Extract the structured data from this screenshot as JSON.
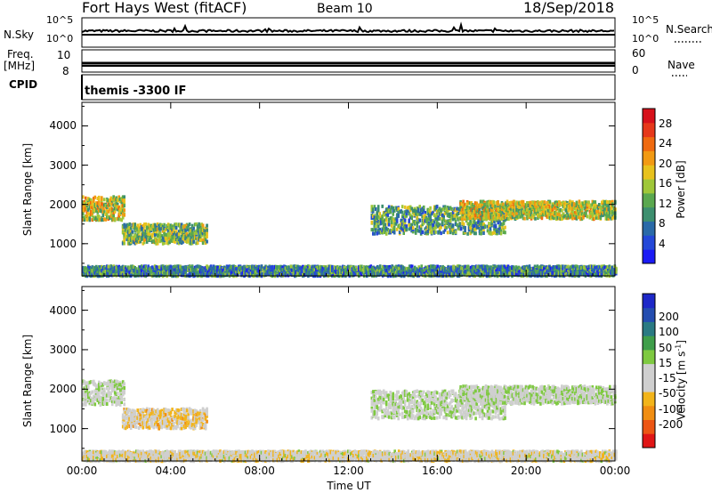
{
  "header": {
    "station": "Fort Hays West (fitACF)",
    "beam": "Beam 10",
    "date": "18/Sep/2018"
  },
  "top_strip": {
    "left_labels": [
      "N.Sky",
      "Freq.",
      "[MHz]",
      "CPID"
    ],
    "right_labels": [
      "N.Search",
      "Nave"
    ],
    "nsky_ticks": [
      "10^5",
      "10^0"
    ],
    "freq_ticks": [
      "10",
      "8"
    ],
    "nave_ticks": [
      "60",
      "0"
    ],
    "nsearch_ticks": [
      "10^5",
      "10^0"
    ],
    "cpid_text": "themis -3300 IF"
  },
  "colors": {
    "power": [
      "#1b1bf5",
      "#2448d8",
      "#2a6aa8",
      "#3d8f6f",
      "#5aa84f",
      "#9fc739",
      "#e8c21d",
      "#f29a13",
      "#ef6a10",
      "#e6381a",
      "#d7111b"
    ],
    "velocity": [
      "#e01616",
      "#ec5614",
      "#f08d12",
      "#f2b41a",
      "#cfcfcf",
      "#cfcfcf",
      "#7ec940",
      "#3f9e4a",
      "#2a7a83",
      "#244db0",
      "#1d28c8"
    ],
    "ground": "#bcbcbc"
  },
  "chart_data": [
    {
      "type": "heatmap",
      "name": "power",
      "xlabel": "",
      "ylabel": "Slant Range [km]",
      "xlim": [
        0,
        24
      ],
      "ylim": [
        180,
        4600
      ],
      "yticks": [
        1000,
        2000,
        3000,
        4000
      ],
      "colorbar": {
        "label": "Power [dB]",
        "ticks": [
          "4",
          "8",
          "12",
          "16",
          "20",
          "24",
          "28"
        ],
        "range": [
          0,
          30
        ]
      },
      "echo_regions": [
        {
          "t_start": 0.0,
          "t_end": 1.9,
          "r_center": 1900,
          "r_width": 600,
          "value": 16
        },
        {
          "t_start": 1.8,
          "t_end": 5.6,
          "r_center": 1250,
          "r_width": 500,
          "value": 13
        },
        {
          "t_start": 13.0,
          "t_end": 19.0,
          "r_center": 1600,
          "r_width": 700,
          "value": 11
        },
        {
          "t_start": 17.0,
          "t_end": 24.0,
          "r_center": 1850,
          "r_width": 450,
          "value": 16
        },
        {
          "t_start": 0.0,
          "t_end": 24.0,
          "r_center": 300,
          "r_width": 250,
          "value": 9
        }
      ]
    },
    {
      "type": "heatmap",
      "name": "velocity",
      "xlabel": "Time UT",
      "ylabel": "Slant Range [km]",
      "xlim": [
        0,
        24
      ],
      "ylim": [
        180,
        4600
      ],
      "yticks": [
        1000,
        2000,
        3000,
        4000
      ],
      "xticks": [
        "00:00",
        "04:00",
        "08:00",
        "12:00",
        "16:00",
        "20:00",
        "00:00"
      ],
      "colorbar": {
        "label": "Velocity [m s^-1]",
        "ticks": [
          "-200",
          "-100",
          "-50",
          "-15",
          "15",
          "50",
          "100",
          "200"
        ],
        "range": [
          -250,
          250
        ]
      },
      "echo_regions": [
        {
          "t_start": 0.0,
          "t_end": 1.9,
          "r_center": 1900,
          "r_width": 600,
          "value": 0
        },
        {
          "t_start": 1.8,
          "t_end": 5.6,
          "r_center": 1250,
          "r_width": 500,
          "value": -60
        },
        {
          "t_start": 13.0,
          "t_end": 19.0,
          "r_center": 1600,
          "r_width": 700,
          "value": 0
        },
        {
          "t_start": 17.0,
          "t_end": 24.0,
          "r_center": 1850,
          "r_width": 450,
          "value": 0
        },
        {
          "t_start": 0.0,
          "t_end": 24.0,
          "r_center": 300,
          "r_width": 250,
          "value": -30
        }
      ]
    }
  ]
}
